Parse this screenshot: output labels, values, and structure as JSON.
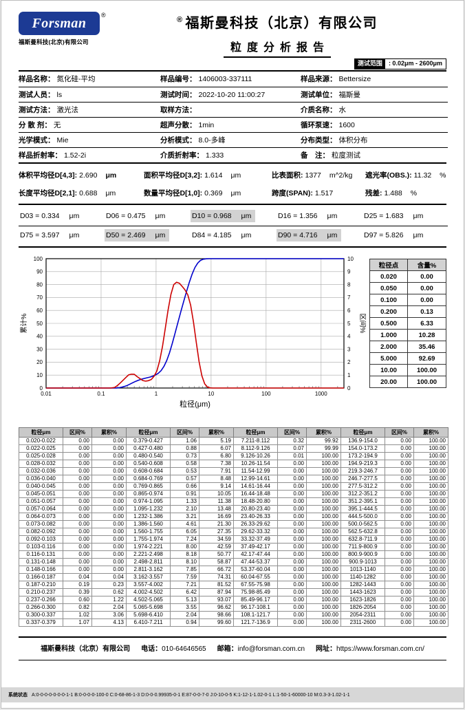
{
  "header": {
    "logo_text": "Forsman",
    "registered": "®",
    "logo_sub": "福斯曼科技(北京)有限公司",
    "company": "福斯曼科技（北京）有限公司",
    "report_title": "粒度分析报告",
    "test_range_label": "测试范围",
    "test_range_value": ": 0.02μm - 2600μm"
  },
  "info": {
    "rows": [
      [
        {
          "label": "样品名称：",
          "value": "氮化硅-平均"
        },
        {
          "label": "样品编号：",
          "value": "1406003-337111"
        },
        {
          "label": "样品来源：",
          "value": "Bettersize"
        }
      ],
      [
        {
          "label": "测试人员：",
          "value": "ls"
        },
        {
          "label": "测试时间：",
          "value": "2022-10-20 11:00:27"
        },
        {
          "label": "测试单位：",
          "value": "福斯曼"
        }
      ],
      [
        {
          "label": "测试方法：",
          "value": "激光法"
        },
        {
          "label": "取样方法：",
          "value": ""
        },
        {
          "label": "介质名称：",
          "value": "水"
        }
      ],
      [
        {
          "label": "分 散 剂：",
          "value": "无"
        },
        {
          "label": "超声分散：",
          "value": "1min"
        },
        {
          "label": "循环泵速：",
          "value": "1600"
        }
      ],
      [
        {
          "label": "光学模式：",
          "value": "Mie"
        },
        {
          "label": "分析模式：",
          "value": "8.0-多峰"
        },
        {
          "label": "分布类型：",
          "value": "体积分布"
        }
      ],
      [
        {
          "label": "样品折射率：",
          "value": "1.52-2i"
        },
        {
          "label": "介质折射率：",
          "value": "1.333"
        },
        {
          "label": "备　注：",
          "value": "粒度测试"
        }
      ]
    ]
  },
  "averages": {
    "rows": [
      [
        {
          "label": "体积平均径D[4,3]:",
          "value": "2.690",
          "unit": "μm",
          "unit_bold": true
        },
        {
          "label": "面积平均径D[3,2]:",
          "value": "1.614",
          "unit": "μm",
          "unit_bold": false
        },
        {
          "label": "比表面积:",
          "value": "1377",
          "unit": "m^2/kg",
          "unit_bold": false
        },
        {
          "label": "遮光率(OBS.):",
          "value": "11.32",
          "unit": "%",
          "unit_bold": false
        }
      ],
      [
        {
          "label": "长度平均径D[2,1]:",
          "value": "0.688",
          "unit": "μm",
          "unit_bold": false
        },
        {
          "label": "数量平均径D[1,0]:",
          "value": "0.369",
          "unit": "μm",
          "unit_bold": false
        },
        {
          "label": "跨度(SPAN):",
          "value": "1.517",
          "unit": "",
          "unit_bold": false
        },
        {
          "label": "残差:",
          "value": "1.488",
          "unit": "%",
          "unit_bold": false
        }
      ]
    ]
  },
  "dvalues": {
    "rows": [
      [
        {
          "text": "D03 = 0.334",
          "unit": "μm",
          "highlight": false
        },
        {
          "text": "D06 = 0.475",
          "unit": "μm",
          "highlight": false
        },
        {
          "text": "D10 = 0.968",
          "unit": "μm",
          "highlight": true
        },
        {
          "text": "D16 = 1.356",
          "unit": "μm",
          "highlight": false
        },
        {
          "text": "D25 = 1.683",
          "unit": "μm",
          "highlight": false
        }
      ],
      [
        {
          "text": "D75 = 3.597",
          "unit": "μm",
          "highlight": false
        },
        {
          "text": "D50 = 2.469",
          "unit": "μm",
          "highlight": true
        },
        {
          "text": "D84 = 4.185",
          "unit": "μm",
          "highlight": false
        },
        {
          "text": "D90 = 4.716",
          "unit": "μm",
          "highlight": true
        },
        {
          "text": "D97 = 5.826",
          "unit": "μm",
          "highlight": false
        }
      ]
    ]
  },
  "chart_data": {
    "type": "line",
    "xlabel": "粒径(μm)",
    "ylabel_left": "累计%",
    "ylabel_right": "区间%",
    "x_scale": "log",
    "xlim": [
      0.01,
      2600
    ],
    "x_ticks": [
      0.01,
      0.1,
      1,
      10,
      100,
      1000
    ],
    "x_tick_labels": [
      "0.01",
      "0.1",
      "1",
      "10",
      "100",
      "1000"
    ],
    "ylim_left": [
      0,
      100
    ],
    "ylim_right": [
      0,
      10
    ],
    "grid": true,
    "series": [
      {
        "name": "累计%",
        "axis": "left",
        "color": "#0000cc",
        "x": [
          0.01,
          0.166,
          0.187,
          0.21,
          0.237,
          0.266,
          0.3,
          0.337,
          0.379,
          0.427,
          0.48,
          0.54,
          0.608,
          0.684,
          0.769,
          0.865,
          0.974,
          1.095,
          1.232,
          1.386,
          1.56,
          1.755,
          1.974,
          2.221,
          2.498,
          2.811,
          3.162,
          3.557,
          4.002,
          4.502,
          5.065,
          5.698,
          6.41,
          7.211,
          8.112,
          9.126,
          10.26,
          2600
        ],
        "y": [
          0,
          0,
          0.04,
          0.23,
          0.62,
          1.22,
          2.04,
          3.06,
          4.13,
          5.19,
          6.07,
          6.8,
          7.38,
          7.91,
          8.48,
          9.14,
          10.05,
          11.38,
          13.48,
          16.69,
          21.3,
          27.35,
          34.59,
          42.59,
          50.77,
          58.87,
          66.72,
          74.31,
          81.52,
          87.94,
          93.07,
          96.62,
          98.66,
          99.6,
          99.92,
          99.99,
          100,
          100
        ]
      },
      {
        "name": "区间%",
        "axis": "right",
        "color": "#cc0000",
        "x": [
          0.01,
          0.148,
          0.176,
          0.198,
          0.223,
          0.251,
          0.283,
          0.318,
          0.357,
          0.402,
          0.453,
          0.509,
          0.573,
          0.645,
          0.725,
          0.816,
          0.918,
          1.033,
          1.162,
          1.306,
          1.47,
          1.653,
          1.861,
          2.093,
          2.355,
          2.65,
          2.981,
          3.353,
          3.773,
          4.245,
          4.775,
          5.372,
          6.043,
          6.798,
          7.648,
          8.603,
          9.68,
          10.89,
          2600
        ],
        "y": [
          0,
          0,
          0.04,
          0.19,
          0.39,
          0.6,
          0.82,
          1.02,
          1.07,
          1.06,
          0.88,
          0.73,
          0.58,
          0.53,
          0.57,
          0.66,
          0.91,
          1.33,
          2.1,
          3.21,
          4.61,
          6.05,
          7.24,
          8.0,
          8.18,
          8.1,
          7.85,
          7.59,
          7.21,
          6.42,
          5.13,
          3.55,
          2.04,
          0.94,
          0.32,
          0.07,
          0.01,
          0,
          0
        ]
      }
    ]
  },
  "summary_table": {
    "headers": [
      "粒径点",
      "含量%"
    ],
    "rows": [
      [
        "0.020",
        "0.00"
      ],
      [
        "0.050",
        "0.00"
      ],
      [
        "0.100",
        "0.00"
      ],
      [
        "0.200",
        "0.13"
      ],
      [
        "0.500",
        "6.33"
      ],
      [
        "1.000",
        "10.28"
      ],
      [
        "2.000",
        "35.46"
      ],
      [
        "5.000",
        "92.69"
      ],
      [
        "10.00",
        "100.00"
      ],
      [
        "20.00",
        "100.00"
      ]
    ]
  },
  "detail_table": {
    "headers": [
      "粒径μm",
      "区间%",
      "累积%"
    ],
    "groups": [
      [
        [
          "0.020-0.022",
          "0.00",
          "0.00"
        ],
        [
          "0.022-0.025",
          "0.00",
          "0.00"
        ],
        [
          "0.025-0.028",
          "0.00",
          "0.00"
        ],
        [
          "0.028-0.032",
          "0.00",
          "0.00"
        ],
        [
          "0.032-0.036",
          "0.00",
          "0.00"
        ],
        [
          "0.036-0.040",
          "0.00",
          "0.00"
        ],
        [
          "0.040-0.045",
          "0.00",
          "0.00"
        ],
        [
          "0.045-0.051",
          "0.00",
          "0.00"
        ],
        [
          "0.051-0.057",
          "0.00",
          "0.00"
        ],
        [
          "0.057-0.064",
          "0.00",
          "0.00"
        ],
        [
          "0.064-0.073",
          "0.00",
          "0.00"
        ],
        [
          "0.073-0.082",
          "0.00",
          "0.00"
        ],
        [
          "0.082-0.092",
          "0.00",
          "0.00"
        ],
        [
          "0.092-0.103",
          "0.00",
          "0.00"
        ],
        [
          "0.103-0.116",
          "0.00",
          "0.00"
        ],
        [
          "0.116-0.131",
          "0.00",
          "0.00"
        ],
        [
          "0.131-0.148",
          "0.00",
          "0.00"
        ],
        [
          "0.148-0.166",
          "0.00",
          "0.00"
        ],
        [
          "0.166-0.187",
          "0.04",
          "0.04"
        ],
        [
          "0.187-0.210",
          "0.19",
          "0.23"
        ],
        [
          "0.210-0.237",
          "0.39",
          "0.62"
        ],
        [
          "0.237-0.266",
          "0.60",
          "1.22"
        ],
        [
          "0.266-0.300",
          "0.82",
          "2.04"
        ],
        [
          "0.300-0.337",
          "1.02",
          "3.06"
        ],
        [
          "0.337-0.379",
          "1.07",
          "4.13"
        ]
      ],
      [
        [
          "0.379-0.427",
          "1.06",
          "5.19"
        ],
        [
          "0.427-0.480",
          "0.88",
          "6.07"
        ],
        [
          "0.480-0.540",
          "0.73",
          "6.80"
        ],
        [
          "0.540-0.608",
          "0.58",
          "7.38"
        ],
        [
          "0.608-0.684",
          "0.53",
          "7.91"
        ],
        [
          "0.684-0.769",
          "0.57",
          "8.48"
        ],
        [
          "0.769-0.865",
          "0.66",
          "9.14"
        ],
        [
          "0.865-0.974",
          "0.91",
          "10.05"
        ],
        [
          "0.974-1.095",
          "1.33",
          "11.38"
        ],
        [
          "1.095-1.232",
          "2.10",
          "13.48"
        ],
        [
          "1.232-1.386",
          "3.21",
          "16.69"
        ],
        [
          "1.386-1.560",
          "4.61",
          "21.30"
        ],
        [
          "1.560-1.755",
          "6.05",
          "27.35"
        ],
        [
          "1.755-1.974",
          "7.24",
          "34.59"
        ],
        [
          "1.974-2.221",
          "8.00",
          "42.59"
        ],
        [
          "2.221-2.498",
          "8.18",
          "50.77"
        ],
        [
          "2.498-2.811",
          "8.10",
          "58.87"
        ],
        [
          "2.811-3.162",
          "7.85",
          "66.72"
        ],
        [
          "3.162-3.557",
          "7.59",
          "74.31"
        ],
        [
          "3.557-4.002",
          "7.21",
          "81.52"
        ],
        [
          "4.002-4.502",
          "6.42",
          "87.94"
        ],
        [
          "4.502-5.065",
          "5.13",
          "93.07"
        ],
        [
          "5.065-5.698",
          "3.55",
          "96.62"
        ],
        [
          "5.698-6.410",
          "2.04",
          "98.66"
        ],
        [
          "6.410-7.211",
          "0.94",
          "99.60"
        ]
      ],
      [
        [
          "7.211-8.112",
          "0.32",
          "99.92"
        ],
        [
          "8.112-9.126",
          "0.07",
          "99.99"
        ],
        [
          "9.126-10.26",
          "0.01",
          "100.00"
        ],
        [
          "10.26-11.54",
          "0.00",
          "100.00"
        ],
        [
          "11.54-12.99",
          "0.00",
          "100.00"
        ],
        [
          "12.99-14.61",
          "0.00",
          "100.00"
        ],
        [
          "14.61-16.44",
          "0.00",
          "100.00"
        ],
        [
          "16.44-18.48",
          "0.00",
          "100.00"
        ],
        [
          "18.48-20.80",
          "0.00",
          "100.00"
        ],
        [
          "20.80-23.40",
          "0.00",
          "100.00"
        ],
        [
          "23.40-26.33",
          "0.00",
          "100.00"
        ],
        [
          "26.33-29.62",
          "0.00",
          "100.00"
        ],
        [
          "29.62-33.32",
          "0.00",
          "100.00"
        ],
        [
          "33.32-37.49",
          "0.00",
          "100.00"
        ],
        [
          "37.49-42.17",
          "0.00",
          "100.00"
        ],
        [
          "42.17-47.44",
          "0.00",
          "100.00"
        ],
        [
          "47.44-53.37",
          "0.00",
          "100.00"
        ],
        [
          "53.37-60.04",
          "0.00",
          "100.00"
        ],
        [
          "60.04-67.55",
          "0.00",
          "100.00"
        ],
        [
          "67.55-75.98",
          "0.00",
          "100.00"
        ],
        [
          "75.98-85.49",
          "0.00",
          "100.00"
        ],
        [
          "85.49-96.17",
          "0.00",
          "100.00"
        ],
        [
          "96.17-108.1",
          "0.00",
          "100.00"
        ],
        [
          "108.1-121.7",
          "0.00",
          "100.00"
        ],
        [
          "121.7-136.9",
          "0.00",
          "100.00"
        ]
      ],
      [
        [
          "136.9-154.0",
          "0.00",
          "100.00"
        ],
        [
          "154.0-173.2",
          "0.00",
          "100.00"
        ],
        [
          "173.2-194.9",
          "0.00",
          "100.00"
        ],
        [
          "194.9-219.3",
          "0.00",
          "100.00"
        ],
        [
          "219.3-246.7",
          "0.00",
          "100.00"
        ],
        [
          "246.7-277.5",
          "0.00",
          "100.00"
        ],
        [
          "277.5-312.2",
          "0.00",
          "100.00"
        ],
        [
          "312.2-351.2",
          "0.00",
          "100.00"
        ],
        [
          "351.2-395.1",
          "0.00",
          "100.00"
        ],
        [
          "395.1-444.5",
          "0.00",
          "100.00"
        ],
        [
          "444.5-500.0",
          "0.00",
          "100.00"
        ],
        [
          "500.0-562.5",
          "0.00",
          "100.00"
        ],
        [
          "562.5-632.8",
          "0.00",
          "100.00"
        ],
        [
          "632.8-711.9",
          "0.00",
          "100.00"
        ],
        [
          "711.9-800.9",
          "0.00",
          "100.00"
        ],
        [
          "800.9-900.9",
          "0.00",
          "100.00"
        ],
        [
          "900.9-1013",
          "0.00",
          "100.00"
        ],
        [
          "1013-1140",
          "0.00",
          "100.00"
        ],
        [
          "1140-1282",
          "0.00",
          "100.00"
        ],
        [
          "1282-1443",
          "0.00",
          "100.00"
        ],
        [
          "1443-1623",
          "0.00",
          "100.00"
        ],
        [
          "1623-1826",
          "0.00",
          "100.00"
        ],
        [
          "1826-2054",
          "0.00",
          "100.00"
        ],
        [
          "2054-2311",
          "0.00",
          "100.00"
        ],
        [
          "2311-2600",
          "0.00",
          "100.00"
        ]
      ]
    ]
  },
  "footer": {
    "company": "福斯曼科技（北京）有限公司",
    "phone_label": "电话：",
    "phone": "010-64646565",
    "email_label": "邮箱：",
    "email": "info@forsman.com.cn",
    "web_label": "网址：",
    "web": "https://www.forsman.com.cn/"
  },
  "status": {
    "label": "系统状态",
    "value": "A:0-0-0-0-0-0-0-1-1  B:0-0-0-0-100-0  C:0-68-86-1-3  D:0-0-0.99935-0-1  E:87-0-0-7-0  J:0-10-0-5  K:1-12-1-1.02-0-1  L:1-50-1-60000-10  M:0.3-3-1.02-1-1"
  }
}
